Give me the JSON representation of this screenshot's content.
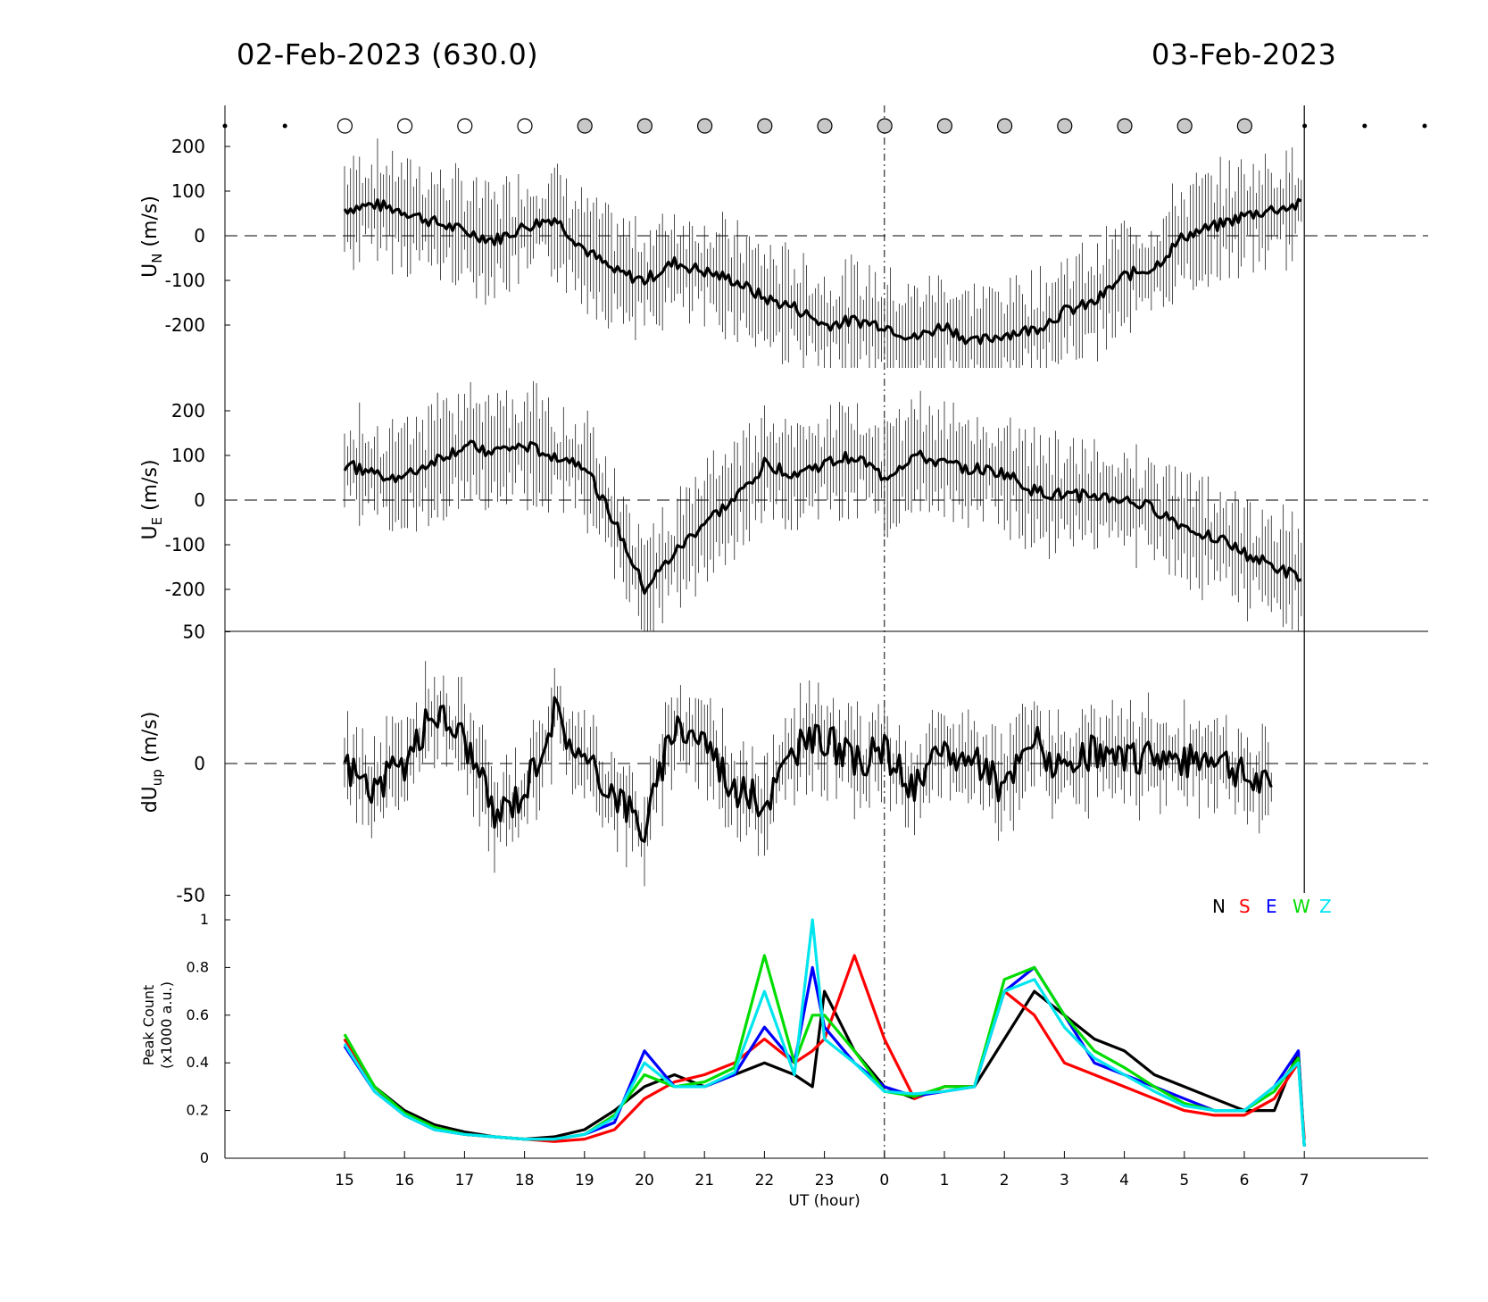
{
  "header": {
    "left_date": "02-Feb-2023 (630.0)",
    "right_date": "03-Feb-2023"
  },
  "colors": {
    "N": "#000000",
    "S": "#ff0000",
    "E": "#0000ff",
    "W": "#00dd00",
    "Z": "#00e5ee"
  },
  "chart_data": [
    {
      "type": "line",
      "panel": "UN",
      "ylabel": "U",
      "ylabel_sub": "N",
      "ylabel_unit": " (m/s)",
      "yticks": [
        "200",
        "100",
        "0",
        "-100",
        "-200"
      ],
      "ylim": [
        -275,
        275
      ],
      "x_hours_since_15UT": [
        0,
        0.5,
        1,
        1.5,
        2,
        2.5,
        3,
        3.5,
        4,
        4.5,
        5,
        5.5,
        6,
        6.5,
        7,
        7.5,
        8,
        8.5,
        9,
        9.5,
        10,
        10.5,
        11,
        11.5,
        12,
        12.5,
        13,
        13.5,
        14,
        14.5,
        15,
        15.5,
        16
      ],
      "values": [
        60,
        70,
        55,
        30,
        10,
        -10,
        20,
        40,
        -30,
        -80,
        -100,
        -60,
        -80,
        -100,
        -140,
        -160,
        -200,
        -190,
        -200,
        -230,
        -200,
        -240,
        -220,
        -210,
        -170,
        -150,
        -90,
        -70,
        0,
        20,
        45,
        60,
        70
      ],
      "sky_condition_moon": [
        "dot",
        "dot",
        "open",
        "open",
        "open",
        "open",
        "gray",
        "gray",
        "gray",
        "gray",
        "gray",
        "gray",
        "gray",
        "gray",
        "gray",
        "gray",
        "gray",
        "gray",
        "dot",
        "dot",
        "dot"
      ]
    },
    {
      "type": "line",
      "panel": "UE",
      "ylabel": "U",
      "ylabel_sub": "E",
      "ylabel_unit": " (m/s)",
      "yticks": [
        "200",
        "100",
        "0",
        "-100",
        "-200"
      ],
      "ylim": [
        -275,
        275
      ],
      "x_hours_since_15UT": [
        0,
        0.5,
        1,
        1.5,
        2,
        2.5,
        3,
        3.5,
        4,
        4.5,
        5,
        5.5,
        6,
        6.5,
        7,
        7.5,
        8,
        8.5,
        9,
        9.5,
        10,
        10.5,
        11,
        11.5,
        12,
        12.5,
        13,
        13.5,
        14,
        14.5,
        15,
        15.5,
        16
      ],
      "values": [
        80,
        60,
        50,
        90,
        120,
        110,
        120,
        100,
        80,
        -50,
        -200,
        -120,
        -50,
        0,
        80,
        60,
        80,
        100,
        50,
        100,
        80,
        70,
        60,
        20,
        10,
        10,
        0,
        -20,
        -60,
        -80,
        -120,
        -150,
        -180
      ]
    },
    {
      "type": "line",
      "panel": "dUup",
      "ylabel": "dU",
      "ylabel_sub": "up",
      "ylabel_unit": " (m/s)",
      "yticks": [
        "50",
        "0",
        "-50"
      ],
      "ylim": [
        -50,
        50
      ],
      "x_hours_since_15UT": [
        0,
        0.5,
        1,
        1.5,
        2,
        2.5,
        3,
        3.5,
        4,
        4.5,
        5,
        5.5,
        6,
        6.5,
        7,
        7.5,
        8,
        8.5,
        9,
        9.5,
        10,
        10.5,
        11,
        11.5,
        12,
        12.5,
        13,
        13.5,
        14,
        14.5,
        15,
        15.5
      ],
      "values": [
        0,
        -10,
        0,
        20,
        10,
        -20,
        -10,
        20,
        0,
        -10,
        -25,
        15,
        10,
        -10,
        -15,
        5,
        10,
        0,
        5,
        -10,
        5,
        0,
        -10,
        10,
        -5,
        5,
        0,
        5,
        0,
        5,
        -5,
        -10
      ]
    },
    {
      "type": "line",
      "panel": "peak",
      "ylabel": "Peak Count",
      "ylabel2": "(x1000 a.u.)",
      "xlabel": "UT (hour)",
      "xticks": [
        "15",
        "16",
        "17",
        "18",
        "19",
        "20",
        "21",
        "22",
        "23",
        "0",
        "1",
        "2",
        "3",
        "4",
        "5",
        "6",
        "7"
      ],
      "yticks": [
        "1",
        "0.8",
        "0.6",
        "0.4",
        "0.2",
        "0"
      ],
      "ylim": [
        0,
        1.1
      ],
      "legend": [
        "N",
        "S",
        "E",
        "W",
        "Z"
      ],
      "legend_position": "top-right",
      "x_hours_since_15UT": [
        0,
        0.5,
        1,
        1.5,
        2,
        2.5,
        3,
        3.5,
        4,
        4.5,
        5,
        5.5,
        6,
        6.5,
        7,
        7.5,
        7.8,
        8,
        8.5,
        9,
        9.5,
        10,
        10.5,
        11,
        11.5,
        12,
        12.5,
        13,
        13.5,
        14,
        14.5,
        15,
        15.5,
        15.9,
        16
      ],
      "series": [
        {
          "name": "N",
          "values": [
            0.5,
            0.3,
            0.2,
            0.14,
            0.11,
            0.09,
            0.08,
            0.09,
            0.12,
            0.2,
            0.3,
            0.35,
            0.3,
            0.35,
            0.4,
            0.35,
            0.3,
            0.7,
            0.45,
            0.3,
            0.25,
            0.3,
            0.3,
            0.5,
            0.7,
            0.6,
            0.5,
            0.45,
            0.35,
            0.3,
            0.25,
            0.2,
            0.2,
            0.45,
            0.05
          ]
        },
        {
          "name": "S",
          "values": [
            0.5,
            0.3,
            0.18,
            0.13,
            0.1,
            0.09,
            0.08,
            0.07,
            0.08,
            0.12,
            0.25,
            0.32,
            0.35,
            0.4,
            0.5,
            0.4,
            0.45,
            0.5,
            0.85,
            0.5,
            0.25,
            0.3,
            0.3,
            0.7,
            0.6,
            0.4,
            0.35,
            0.3,
            0.25,
            0.2,
            0.18,
            0.18,
            0.25,
            0.4,
            0.08
          ]
        },
        {
          "name": "E",
          "values": [
            0.47,
            0.28,
            0.18,
            0.12,
            0.1,
            0.09,
            0.08,
            0.08,
            0.1,
            0.15,
            0.45,
            0.3,
            0.3,
            0.35,
            0.55,
            0.4,
            0.8,
            0.55,
            0.4,
            0.3,
            0.26,
            0.28,
            0.3,
            0.7,
            0.8,
            0.6,
            0.4,
            0.35,
            0.3,
            0.25,
            0.2,
            0.2,
            0.3,
            0.45,
            0.05
          ]
        },
        {
          "name": "W",
          "values": [
            0.52,
            0.3,
            0.19,
            0.13,
            0.1,
            0.09,
            0.08,
            0.08,
            0.1,
            0.18,
            0.35,
            0.3,
            0.32,
            0.38,
            0.85,
            0.4,
            0.6,
            0.6,
            0.45,
            0.28,
            0.26,
            0.3,
            0.3,
            0.75,
            0.8,
            0.6,
            0.45,
            0.38,
            0.3,
            0.23,
            0.2,
            0.2,
            0.28,
            0.42,
            0.05
          ]
        },
        {
          "name": "Z",
          "values": [
            0.48,
            0.28,
            0.18,
            0.12,
            0.1,
            0.09,
            0.08,
            0.08,
            0.1,
            0.17,
            0.4,
            0.3,
            0.3,
            0.36,
            0.7,
            0.35,
            1.0,
            0.5,
            0.4,
            0.28,
            0.27,
            0.28,
            0.3,
            0.7,
            0.75,
            0.55,
            0.42,
            0.35,
            0.28,
            0.22,
            0.2,
            0.2,
            0.3,
            0.4,
            0.05
          ]
        }
      ]
    }
  ]
}
